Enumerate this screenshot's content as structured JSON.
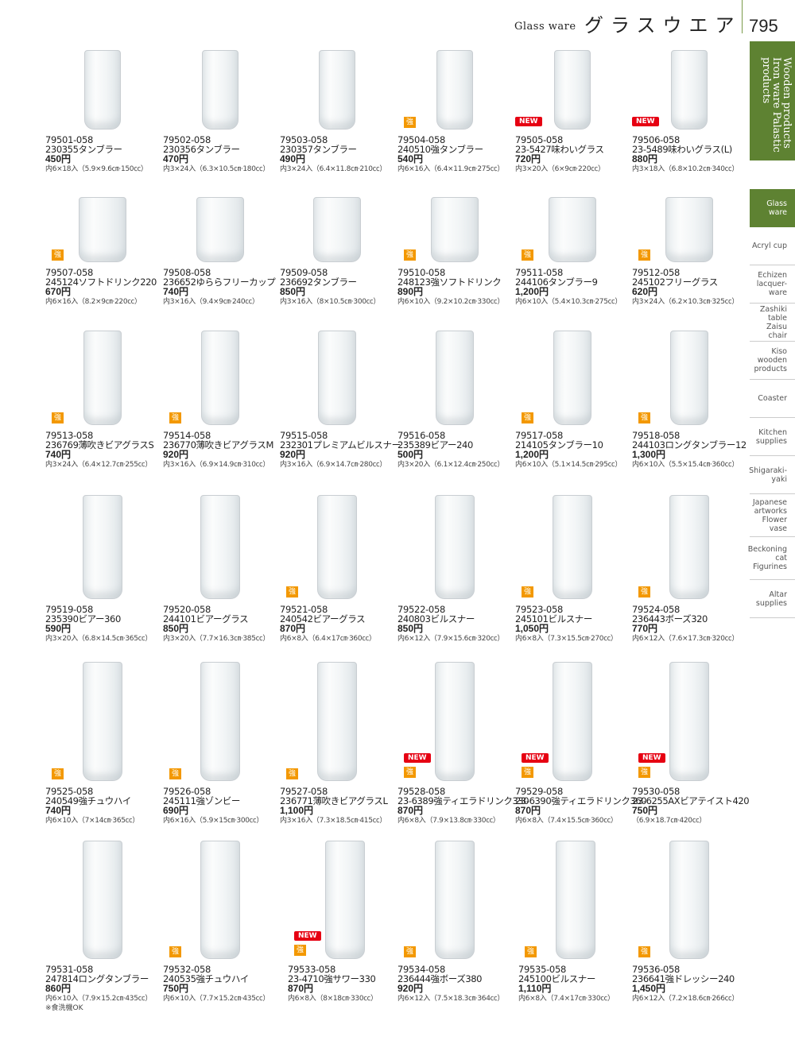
{
  "header": {
    "title_en": "Glass ware",
    "title_jp": "グラスウエア",
    "page_number": "795",
    "category_tab": "Wooden products Iron ware Palastic products"
  },
  "sidebar": {
    "items": [
      {
        "label": "Glass\nware",
        "active": true
      },
      {
        "label": "Acryl cup"
      },
      {
        "label": "Echizen\nlacquer-\nware"
      },
      {
        "label": "Zashiki\ntable\nZaisu\nchair"
      },
      {
        "label": "Kiso\nwooden\nproducts"
      },
      {
        "label": "Coaster"
      },
      {
        "label": "Kitchen\nsupplies"
      },
      {
        "label": "Shigaraki-\nyaki"
      },
      {
        "label": "Japanese\nartworks\nFlower\nvase"
      },
      {
        "label": "Beckoning\ncat\nFigurines"
      },
      {
        "label": "Altar\nsupplies"
      }
    ]
  },
  "badge_labels": {
    "new": "NEW",
    "strong": "強"
  },
  "colors": {
    "accent_green": "#5e8232",
    "new_red": "#e60012",
    "strong_orange": "#f39800"
  },
  "products": [
    {
      "code": "79501-058",
      "name": "230355タンブラー",
      "price": "450円",
      "spec": "内6×18入（5.9×9.6㎝·150㏄）",
      "new": false,
      "strong": false
    },
    {
      "code": "79502-058",
      "name": "230356タンブラー",
      "price": "470円",
      "spec": "内3×24入（6.3×10.5㎝·180㏄）",
      "new": false,
      "strong": false
    },
    {
      "code": "79503-058",
      "name": "230357タンブラー",
      "price": "490円",
      "spec": "内3×24入（6.4×11.8㎝·210㏄）",
      "new": false,
      "strong": false
    },
    {
      "code": "79504-058",
      "name": "240510強タンブラー",
      "price": "540円",
      "spec": "内6×16入（6.4×11.9㎝·275㏄）",
      "new": false,
      "strong": true
    },
    {
      "code": "79505-058",
      "name": "23-5427味わいグラス",
      "price": "720円",
      "spec": "内3×20入（6×9㎝·220㏄）",
      "new": true,
      "strong": false
    },
    {
      "code": "79506-058",
      "name": "23-5489味わいグラス(L)",
      "price": "880円",
      "spec": "内3×18入（6.8×10.2㎝·340㏄）",
      "new": true,
      "strong": false
    },
    {
      "code": "79507-058",
      "name": "245124ソフトドリンク220",
      "price": "670円",
      "spec": "内6×16入（8.2×9㎝·220㏄）",
      "new": false,
      "strong": true
    },
    {
      "code": "79508-058",
      "name": "236652ゆららフリーカップ",
      "price": "740円",
      "spec": "内3×16入（9.4×9㎝·240㏄）",
      "new": false,
      "strong": false
    },
    {
      "code": "79509-058",
      "name": "236692タンブラー",
      "price": "850円",
      "spec": "内3×16入（8×10.5㎝·300㏄）",
      "new": false,
      "strong": false
    },
    {
      "code": "79510-058",
      "name": "248123強ソフトドリンク",
      "price": "890円",
      "spec": "内6×10入（9.2×10.2㎝·330㏄）",
      "new": false,
      "strong": true
    },
    {
      "code": "79511-058",
      "name": "244106タンブラー9",
      "price": "1,200円",
      "spec": "内6×10入（5.4×10.3㎝·275㏄）",
      "new": false,
      "strong": true
    },
    {
      "code": "79512-058",
      "name": "245102フリーグラス",
      "price": "620円",
      "spec": "内3×24入（6.2×10.3㎝·325㏄）",
      "new": false,
      "strong": true
    },
    {
      "code": "79513-058",
      "name": "236769薄吹きビアグラスS",
      "price": "740円",
      "spec": "内3×24入（6.4×12.7㎝·255㏄）",
      "new": false,
      "strong": true
    },
    {
      "code": "79514-058",
      "name": "236770薄吹きビアグラスM",
      "price": "920円",
      "spec": "内3×16入（6.9×14.9㎝·310㏄）",
      "new": false,
      "strong": true
    },
    {
      "code": "79515-058",
      "name": "232301プレミアムビルスナー",
      "price": "920円",
      "spec": "内3×16入（6.9×14.7㎝·280㏄）",
      "new": false,
      "strong": false
    },
    {
      "code": "79516-058",
      "name": "235389ビアー240",
      "price": "500円",
      "spec": "内3×20入（6.1×12.4㎝·250㏄）",
      "new": false,
      "strong": false
    },
    {
      "code": "79517-058",
      "name": "214105タンブラー10",
      "price": "1,200円",
      "spec": "内6×10入（5.1×14.5㎝·295㏄）",
      "new": false,
      "strong": true
    },
    {
      "code": "79518-058",
      "name": "244103ロングタンブラー12",
      "price": "1,300円",
      "spec": "内6×10入（5.5×15.4㎝·360㏄）",
      "new": false,
      "strong": true
    },
    {
      "code": "79519-058",
      "name": "235390ビアー360",
      "price": "590円",
      "spec": "内3×20入（6.8×14.5㎝·365㏄）",
      "new": false,
      "strong": false
    },
    {
      "code": "79520-058",
      "name": "244101ビアーグラス",
      "price": "850円",
      "spec": "内3×20入（7.7×16.3㎝·385㏄）",
      "new": false,
      "strong": false
    },
    {
      "code": "79521-058",
      "name": "240542ビアーグラス",
      "price": "870円",
      "spec": "内6×8入（6.4×17㎝·360㏄）",
      "new": false,
      "strong": true
    },
    {
      "code": "79522-058",
      "name": "240803ビルスナー",
      "price": "850円",
      "spec": "内6×12入（7.9×15.6㎝·320㏄）",
      "new": false,
      "strong": false
    },
    {
      "code": "79523-058",
      "name": "245101ビルスナー",
      "price": "1,050円",
      "spec": "内6×8入（7.3×15.5㎝·270㏄）",
      "new": false,
      "strong": true
    },
    {
      "code": "79524-058",
      "name": "236443ボーズ320",
      "price": "770円",
      "spec": "内6×12入（7.6×17.3㎝·320㏄）",
      "new": false,
      "strong": true
    },
    {
      "code": "79525-058",
      "name": "240549強チュウハイ",
      "price": "740円",
      "spec": "内6×10入（7×14㎝·365㏄）",
      "new": false,
      "strong": true
    },
    {
      "code": "79526-058",
      "name": "245111強ゾンビー",
      "price": "690円",
      "spec": "内6×16入（5.9×15㎝·300㏄）",
      "new": false,
      "strong": true
    },
    {
      "code": "79527-058",
      "name": "236771薄吹きビアグラスL",
      "price": "1,100円",
      "spec": "内3×16入（7.3×18.5㎝·415㏄）",
      "new": false,
      "strong": true
    },
    {
      "code": "79528-058",
      "name": "23-6389強ティエラドリンク330",
      "price": "870円",
      "spec": "内6×8入（7.9×13.8㎝·330㏄）",
      "new": true,
      "strong": true
    },
    {
      "code": "79529-058",
      "name": "23-6390強ティエラドリンク360",
      "price": "870円",
      "spec": "内6×8入（7.4×15.5㎝·360㏄）",
      "new": true,
      "strong": true
    },
    {
      "code": "79530-058",
      "name": "23-6255AXビアテイスト420",
      "price": "750円",
      "spec": "（6.9×18.7㎝·420㏄）",
      "new": true,
      "strong": true
    },
    {
      "code": "79531-058",
      "name": "247814ロングタンブラー",
      "price": "860円",
      "spec": "内6×10入（7.9×15.2㎝·435㏄）",
      "note": "※食洗機OK",
      "new": false,
      "strong": false
    },
    {
      "code": "79532-058",
      "name": "240535強チュウハイ",
      "price": "750円",
      "spec": "内6×10入（7.7×15.2㎝·435㏄）",
      "new": false,
      "strong": true
    },
    {
      "code": "79533-058",
      "name": "23-4710強サワー330",
      "price": "870円",
      "spec": "内6×8入（8×18㎝·330㏄）",
      "new": true,
      "strong": true
    },
    {
      "code": "79534-058",
      "name": "236444強ボーズ380",
      "price": "920円",
      "spec": "内6×12入（7.5×18.3㎝·364㏄）",
      "new": false,
      "strong": true
    },
    {
      "code": "79535-058",
      "name": "245100ビルスナー",
      "price": "1,110円",
      "spec": "内6×8入（7.4×17㎝·330㏄）",
      "new": false,
      "strong": true
    },
    {
      "code": "79536-058",
      "name": "236641強ドレッシー240",
      "price": "1,450円",
      "spec": "内6×12入（7.2×18.6㎝·266㏄）",
      "new": false,
      "strong": true
    }
  ]
}
